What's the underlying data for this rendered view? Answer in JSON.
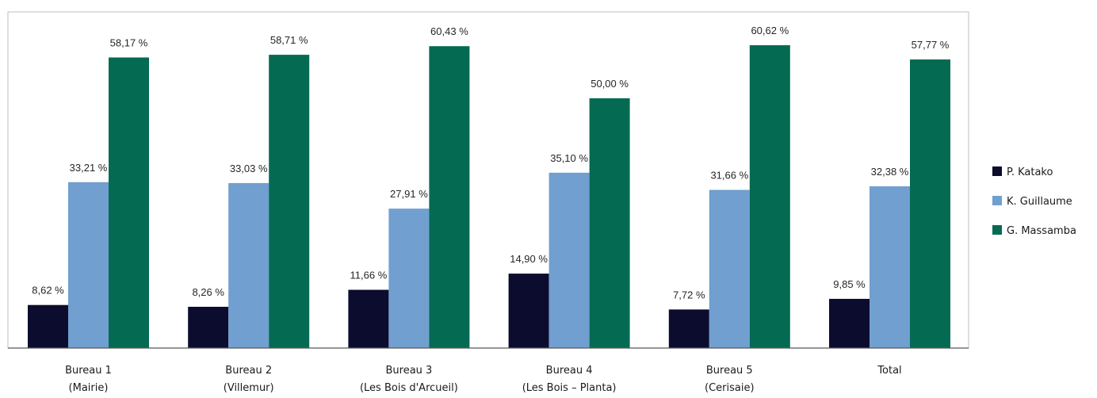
{
  "chart_data": {
    "type": "bar",
    "title": "",
    "xlabel": "",
    "ylabel": "",
    "ylim": [
      0,
      67
    ],
    "grid": false,
    "legend_position": "right",
    "categories": [
      [
        "Bureau 1",
        "(Mairie)"
      ],
      [
        "Bureau 2",
        "(Villemur)"
      ],
      [
        "Bureau 3",
        "(Les Bois d'Arcueil)"
      ],
      [
        "Bureau 4",
        "(Les Bois – Planta)"
      ],
      [
        "Bureau 5",
        "(Cerisaie)"
      ],
      [
        "Total"
      ]
    ],
    "series": [
      {
        "name": "P. Katako",
        "color": "#0c0c2e",
        "values": [
          8.62,
          8.26,
          11.66,
          14.9,
          7.72,
          9.85
        ],
        "labels": [
          "8,62 %",
          "8,26 %",
          "11,66 %",
          "14,90 %",
          "7,72 %",
          "9,85 %"
        ]
      },
      {
        "name": "K. Guillaume",
        "color": "#709fd0",
        "values": [
          33.21,
          33.03,
          27.91,
          35.1,
          31.66,
          32.38
        ],
        "labels": [
          "33,21 %",
          "33,03 %",
          "27,91 %",
          "35,10 %",
          "31,66 %",
          "32,38 %"
        ]
      },
      {
        "name": "G. Massamba",
        "color": "#046b52",
        "values": [
          58.17,
          58.71,
          60.43,
          50.0,
          60.62,
          57.77
        ],
        "labels": [
          "58,17 %",
          "58,71 %",
          "60,43 %",
          "50,00 %",
          "60,62 %",
          "57,77 %"
        ]
      }
    ]
  }
}
